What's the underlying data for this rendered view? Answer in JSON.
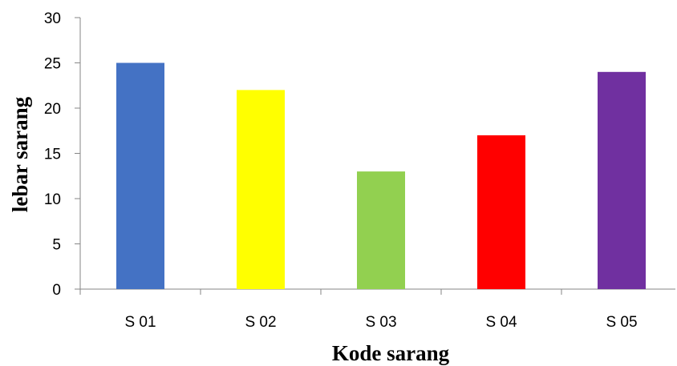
{
  "chart_data": {
    "type": "bar",
    "title": "",
    "xlabel": "Kode sarang",
    "ylabel": "lebar sarang",
    "categories": [
      "S 01",
      "S 02",
      "S 03",
      "S 04",
      "S 05"
    ],
    "values": [
      25,
      22,
      13,
      17,
      24
    ],
    "bar_colors": [
      "#4472C4",
      "#FFFF00",
      "#92D050",
      "#FF0000",
      "#7030A0"
    ],
    "ylim": [
      0,
      30
    ],
    "yticks": [
      "0",
      "5",
      "10",
      "15",
      "20",
      "25",
      "30"
    ],
    "grid": false,
    "legend": "none"
  }
}
